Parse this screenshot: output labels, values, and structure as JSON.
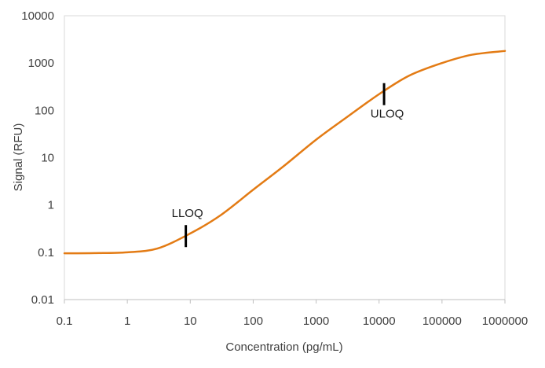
{
  "chart_data": {
    "type": "line",
    "title": "",
    "xlabel": "Concentration (pg/mL)",
    "ylabel": "Signal (RFU)",
    "x_scale": "log",
    "y_scale": "log",
    "xlim": [
      0.1,
      1000000
    ],
    "ylim": [
      0.01,
      10000
    ],
    "x_ticks": [
      "0.1",
      "1",
      "10",
      "100",
      "1000",
      "10000",
      "100000",
      "1000000"
    ],
    "y_ticks": [
      "0.01",
      "0.1",
      "1",
      "10",
      "100",
      "1000",
      "10000"
    ],
    "grid": false,
    "legend": "none",
    "series": [
      {
        "color": "#E37B14",
        "x": [
          0.1,
          0.3,
          1,
          3,
          10,
          30,
          100,
          300,
          1000,
          3000,
          10000,
          30000,
          100000,
          300000,
          1000000
        ],
        "y": [
          0.095,
          0.096,
          0.1,
          0.12,
          0.25,
          0.6,
          2.1,
          6.5,
          24,
          70,
          220,
          540,
          1000,
          1500,
          1800
        ]
      }
    ],
    "annotations": [
      {
        "label": "LLOQ",
        "x": 8.5,
        "y": 0.22
      },
      {
        "label": "ULOQ",
        "x": 12000,
        "y": 220
      }
    ]
  }
}
